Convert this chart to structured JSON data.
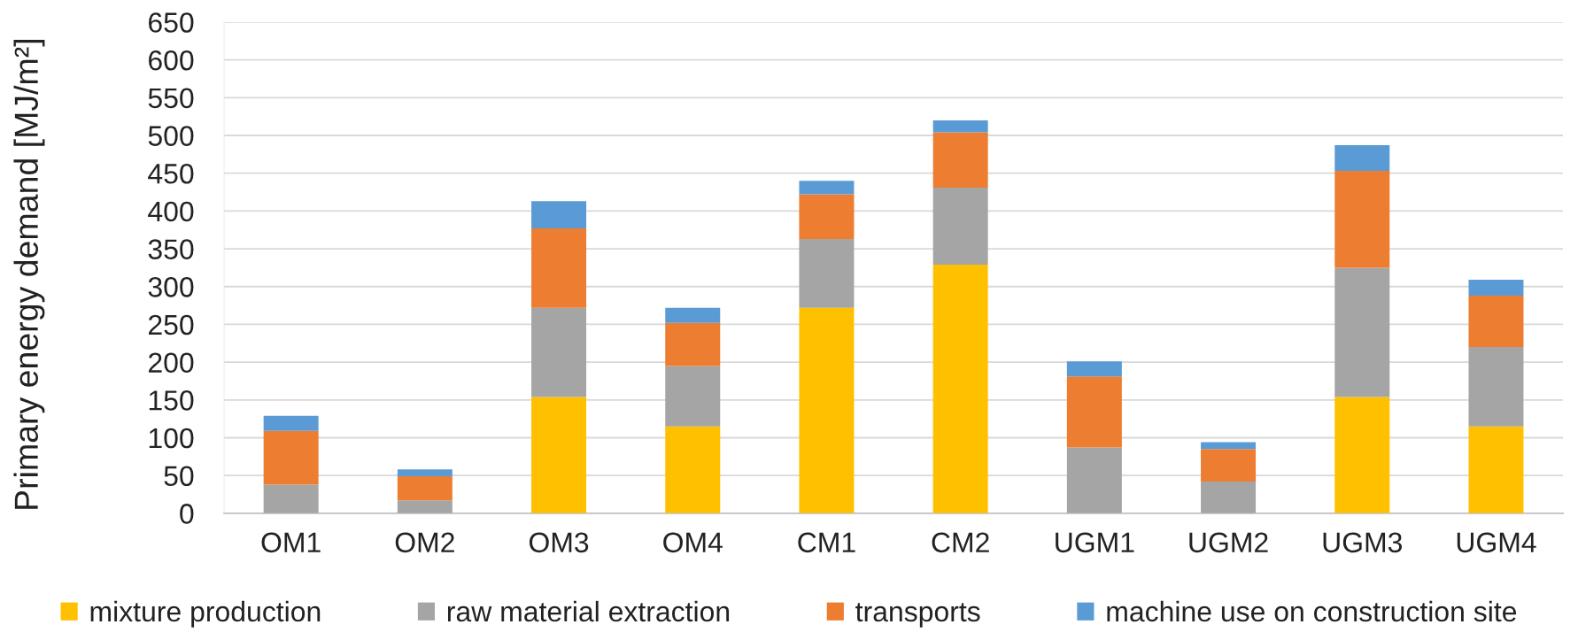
{
  "chart_data": {
    "type": "bar",
    "stacked": true,
    "ylabel": "Primary energy demand [MJ/m²]",
    "categories": [
      "OM1",
      "OM2",
      "OM3",
      "OM4",
      "CM1",
      "CM2",
      "UGM1",
      "UGM2",
      "UGM3",
      "UGM4"
    ],
    "series": [
      {
        "name": "mixture production",
        "color": "#ffc000",
        "values": [
          0,
          0,
          154,
          115,
          272,
          329,
          0,
          0,
          154,
          115
        ]
      },
      {
        "name": "raw material extraction",
        "color": "#a5a5a5",
        "values": [
          38,
          17,
          118,
          80,
          91,
          102,
          87,
          42,
          171,
          105
        ]
      },
      {
        "name": "transports",
        "color": "#ed7d31",
        "values": [
          71,
          32,
          105,
          57,
          59,
          73,
          94,
          43,
          128,
          68
        ]
      },
      {
        "name": "machine use on construction site",
        "color": "#5b9bd5",
        "values": [
          20,
          9,
          36,
          20,
          18,
          16,
          20,
          9,
          34,
          21
        ]
      }
    ],
    "ylim": [
      0,
      650
    ],
    "yticks": [
      0,
      50,
      100,
      150,
      200,
      250,
      300,
      350,
      400,
      450,
      500,
      550,
      600,
      650
    ],
    "grid": "y",
    "legend": "bottom"
  }
}
